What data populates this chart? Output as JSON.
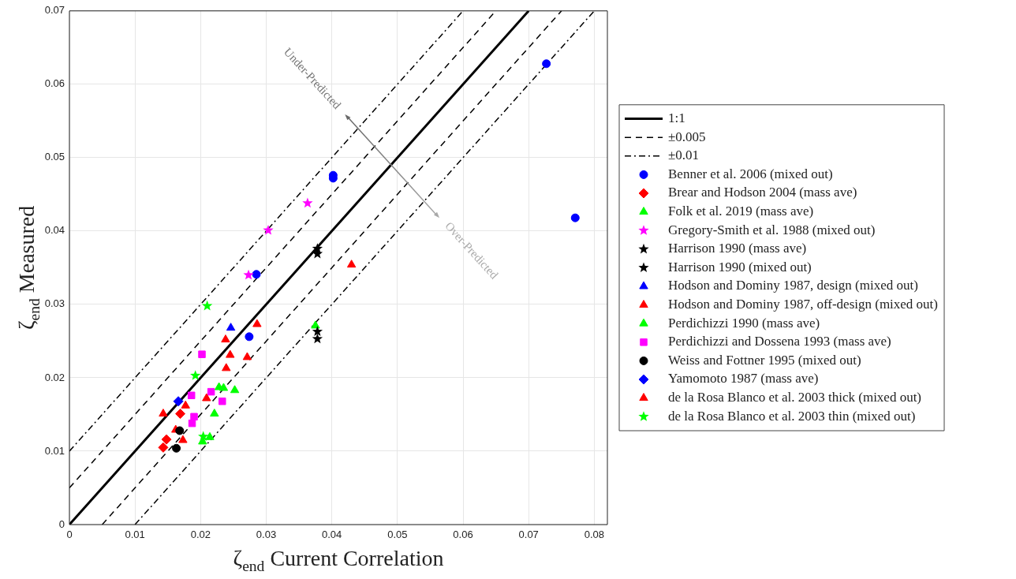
{
  "chart_data": {
    "type": "scatter",
    "xlabel": "ζ$_{end}$ Current Correlation",
    "ylabel": "ζ$_{end}$ Measured",
    "xlim": [
      0,
      0.082
    ],
    "ylim": [
      0,
      0.07
    ],
    "xticks": [
      0,
      0.01,
      0.02,
      0.03,
      0.04,
      0.05,
      0.06,
      0.07,
      0.08
    ],
    "yticks": [
      0,
      0.01,
      0.02,
      0.03,
      0.04,
      0.05,
      0.06,
      0.07
    ],
    "grid": true,
    "legend": "right",
    "annotations": [
      "Under-Predicted",
      "Over-Predicted"
    ],
    "series": [
      {
        "name": "1:1",
        "type": "line",
        "color": "#000000",
        "line_style": "solid",
        "x": [
          0,
          0.07
        ],
        "values": [
          0,
          0.07
        ]
      },
      {
        "name": "±0.005",
        "type": "line",
        "color": "#000000",
        "line_style": "dashed",
        "x": [
          0,
          0.065
        ],
        "values": [
          0.005,
          0.07
        ]
      },
      {
        "type": "line",
        "color": "#000000",
        "line_style": "dashed",
        "x": [
          0.005,
          0.075
        ],
        "values": [
          0,
          0.07
        ]
      },
      {
        "name": "±0.01",
        "type": "line",
        "color": "#000000",
        "line_style": "dashdot",
        "x": [
          0,
          0.06
        ],
        "values": [
          0.01,
          0.07
        ]
      },
      {
        "type": "line",
        "color": "#000000",
        "line_style": "dashdot",
        "x": [
          0.01,
          0.08
        ],
        "values": [
          0,
          0.07
        ]
      },
      {
        "name": "Benner et al. 2006 (mixed out)",
        "color": "#0000ff",
        "marker": "circle",
        "x": [
          0.0727,
          0.0771,
          0.0402,
          0.0402,
          0.0285,
          0.0274
        ],
        "values": [
          0.0628,
          0.0418,
          0.0476,
          0.0472,
          0.0341,
          0.0256
        ]
      },
      {
        "name": "Brear and Hodson 2004 (mass ave)",
        "color": "#ff0000",
        "marker": "diamond",
        "x": [
          0.0148,
          0.0143,
          0.0169
        ],
        "values": [
          0.0116,
          0.0105,
          0.0151
        ]
      },
      {
        "name": "Folk et al. 2019 (mass ave)",
        "color": "#00ff00",
        "marker": "triangle",
        "x": [
          0.0375
        ],
        "values": [
          0.0271
        ]
      },
      {
        "name": "Gregory-Smith et al. 1988 (mixed out)",
        "color": "#ff00ff",
        "marker": "star",
        "x": [
          0.0363,
          0.0303,
          0.0273
        ],
        "values": [
          0.0438,
          0.0401,
          0.034
        ]
      },
      {
        "name": "Harrison 1990 (mass ave)",
        "color": "#000000",
        "marker": "star",
        "x": [
          0.0378,
          0.0378
        ],
        "values": [
          0.0263,
          0.0253
        ]
      },
      {
        "name": "Harrison 1990 (mixed out)",
        "color": "#000000",
        "marker": "star",
        "x": [
          0.0378,
          0.0378
        ],
        "values": [
          0.0376,
          0.0369
        ]
      },
      {
        "name": "Hodson and Dominy 1987, design (mixed out)",
        "color": "#0000ff",
        "marker": "triangle",
        "x": [
          0.0246
        ],
        "values": [
          0.0268
        ]
      },
      {
        "name": "Hodson and Dominy 1987, off-design (mixed out)",
        "color": "#ff0000",
        "marker": "triangle",
        "x": [
          0.0286,
          0.0238,
          0.0245,
          0.0271,
          0.0239,
          0.0209,
          0.0143,
          0.043
        ],
        "values": [
          0.0273,
          0.0252,
          0.0231,
          0.0228,
          0.0213,
          0.0172,
          0.0151,
          0.0354
        ]
      },
      {
        "name": "Perdichizzi 1990 (mass ave)",
        "color": "#00ff00",
        "marker": "triangle",
        "x": [
          0.0228,
          0.0235,
          0.0252,
          0.0221,
          0.0203,
          0.0214
        ],
        "values": [
          0.0187,
          0.0186,
          0.0183,
          0.0151,
          0.0113,
          0.0119
        ]
      },
      {
        "name": "Perdichizzi and Dossena 1993 (mass ave)",
        "color": "#ff00ff",
        "marker": "square",
        "x": [
          0.0202,
          0.0186,
          0.0216,
          0.0233,
          0.019,
          0.0187
        ],
        "values": [
          0.0232,
          0.0176,
          0.0181,
          0.0168,
          0.0147,
          0.0138
        ]
      },
      {
        "name": "Weiss and Fottner 1995 (mixed out)",
        "color": "#000000",
        "marker": "circle",
        "x": [
          0.0168,
          0.0163
        ],
        "values": [
          0.0128,
          0.0104
        ]
      },
      {
        "name": "Yamomoto 1987 (mass ave)",
        "color": "#0000ff",
        "marker": "diamond",
        "x": [
          0.0166
        ],
        "values": [
          0.0168
        ]
      },
      {
        "name": "de la Rosa Blanco et al. 2003 thick (mixed out)",
        "color": "#ff0000",
        "marker": "triangle",
        "x": [
          0.0177,
          0.0162,
          0.0173
        ],
        "values": [
          0.0162,
          0.0129,
          0.0115
        ]
      },
      {
        "name": "de la Rosa Blanco et al. 2003 thin (mixed out)",
        "color": "#00ff00",
        "marker": "star",
        "x": [
          0.021,
          0.0192,
          0.0204
        ],
        "values": [
          0.0298,
          0.0203,
          0.012
        ]
      }
    ]
  }
}
